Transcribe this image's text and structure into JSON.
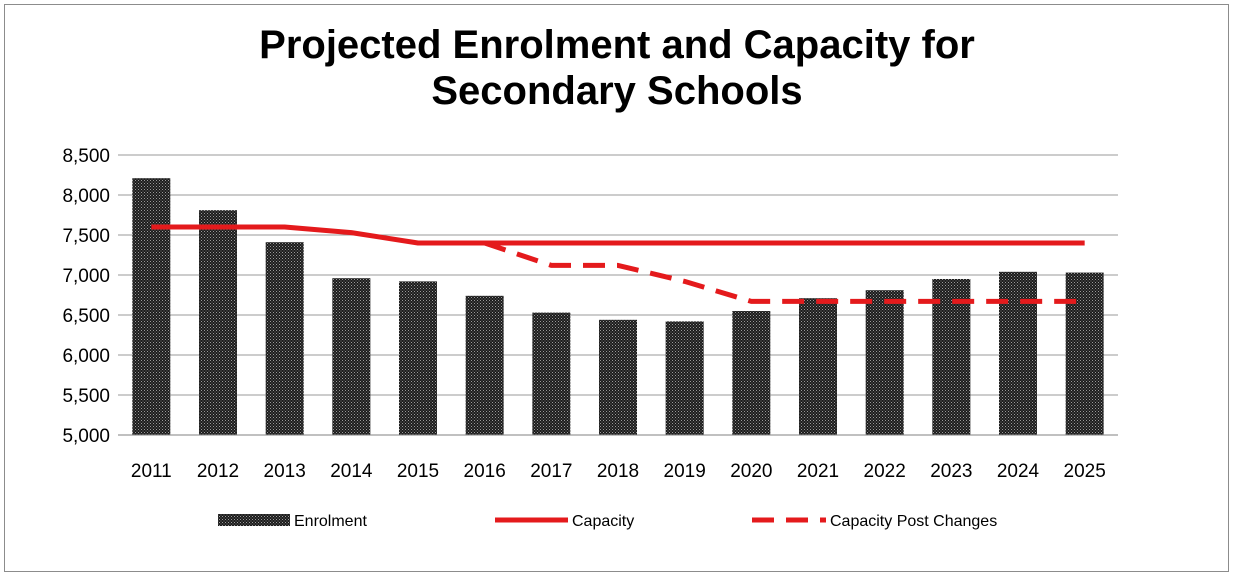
{
  "chart_data": {
    "type": "bar",
    "title_lines": [
      "Projected Enrolment and Capacity for",
      "Secondary Schools"
    ],
    "categories": [
      "2011",
      "2012",
      "2013",
      "2014",
      "2015",
      "2016",
      "2017",
      "2018",
      "2019",
      "2020",
      "2021",
      "2022",
      "2023",
      "2024",
      "2025"
    ],
    "ylim": [
      5000,
      8500
    ],
    "yticks": [
      5000,
      5500,
      6000,
      6500,
      7000,
      7500,
      8000,
      8500
    ],
    "ytick_labels": [
      "5,000",
      "5,500",
      "6,000",
      "6,500",
      "7,000",
      "7,500",
      "8,000",
      "8,500"
    ],
    "grid": true,
    "legend_position": "bottom",
    "series": [
      {
        "name": "Enrolment",
        "kind": "bar",
        "color": "#1a1a1a",
        "values": [
          8210,
          7810,
          7410,
          6960,
          6920,
          6740,
          6530,
          6440,
          6420,
          6550,
          6710,
          6810,
          6950,
          7040,
          7030
        ]
      },
      {
        "name": "Capacity",
        "kind": "line",
        "style": "solid",
        "color": "#e41a1c",
        "values": [
          7600,
          7600,
          7600,
          7530,
          7400,
          7400,
          7400,
          7400,
          7400,
          7400,
          7400,
          7400,
          7400,
          7400,
          7400
        ]
      },
      {
        "name": "Capacity Post Changes",
        "kind": "line",
        "style": "dashed",
        "color": "#e41a1c",
        "values": [
          null,
          null,
          null,
          null,
          null,
          7400,
          7120,
          7120,
          6920,
          6670,
          6670,
          6670,
          6670,
          6670,
          6670
        ]
      }
    ]
  }
}
